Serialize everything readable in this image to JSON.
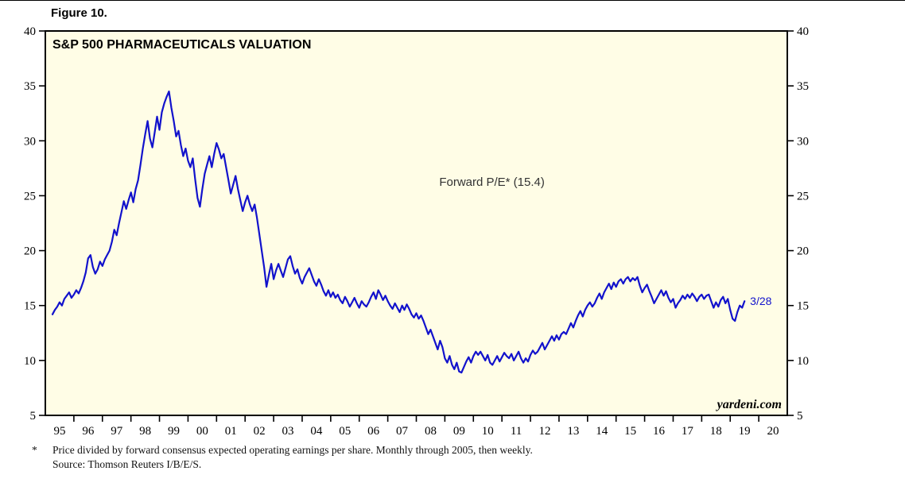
{
  "figure": {
    "label": "Figure 10."
  },
  "footnote": {
    "marker": "*",
    "line1": "Price divided by forward consensus expected operating earnings per share. Monthly through 2005, then weekly.",
    "line2": "Source: Thomson Reuters I/B/E/S."
  },
  "chart_data": {
    "type": "line",
    "title": "S&P 500 PHARMACEUTICALS VALUATION",
    "series_label": "Forward P/E*",
    "latest_value": 15.4,
    "annotation": "Forward P/E* (15.4)",
    "end_label": "3/28",
    "watermark": "yardeni.com",
    "line_color": "#1212cc",
    "plot_bg": "#fffde6",
    "grid": false,
    "legend_position": "none",
    "x_domain": [
      1994.75,
      2020.75
    ],
    "y_domain": [
      5,
      40
    ],
    "y_ticks": [
      5,
      10,
      15,
      20,
      25,
      30,
      35,
      40
    ],
    "x_tick_labels": [
      "95",
      "96",
      "97",
      "98",
      "99",
      "00",
      "01",
      "02",
      "03",
      "04",
      "05",
      "06",
      "07",
      "08",
      "09",
      "10",
      "11",
      "12",
      "13",
      "14",
      "15",
      "16",
      "17",
      "18",
      "19",
      "20"
    ],
    "x_start": 1995.0,
    "x_step_per_point": 0.0833333,
    "annotation_pos": {
      "x": 2010.4,
      "y": 25.9
    },
    "values": [
      14.2,
      14.6,
      14.9,
      15.3,
      15.0,
      15.6,
      15.9,
      16.2,
      15.7,
      16.0,
      16.4,
      16.1,
      16.6,
      17.2,
      18.0,
      19.3,
      19.6,
      18.5,
      17.9,
      18.3,
      19.0,
      18.6,
      19.2,
      19.6,
      20.0,
      20.8,
      21.9,
      21.4,
      22.5,
      23.5,
      24.5,
      23.8,
      24.6,
      25.3,
      24.4,
      25.6,
      26.4,
      27.8,
      29.3,
      30.6,
      31.8,
      30.2,
      29.4,
      30.8,
      32.2,
      31.0,
      32.6,
      33.4,
      34.0,
      34.5,
      33.0,
      31.8,
      30.4,
      30.9,
      29.6,
      28.6,
      29.3,
      28.2,
      27.6,
      28.4,
      26.5,
      24.8,
      24.0,
      25.6,
      27.0,
      27.8,
      28.6,
      27.6,
      28.8,
      29.8,
      29.2,
      28.4,
      28.8,
      27.6,
      26.4,
      25.2,
      26.0,
      26.8,
      25.6,
      24.6,
      23.6,
      24.4,
      25.0,
      24.2,
      23.6,
      24.2,
      23.0,
      21.5,
      20.0,
      18.5,
      16.7,
      17.8,
      18.8,
      17.4,
      18.2,
      18.8,
      18.2,
      17.6,
      18.4,
      19.2,
      19.5,
      18.6,
      17.9,
      18.3,
      17.5,
      17.0,
      17.6,
      18.0,
      18.4,
      17.8,
      17.2,
      16.8,
      17.4,
      16.9,
      16.3,
      15.9,
      16.4,
      15.8,
      16.2,
      15.7,
      16.0,
      15.5,
      15.2,
      15.8,
      15.4,
      14.9,
      15.3,
      15.7,
      15.2,
      14.8,
      15.4,
      15.1,
      14.9,
      15.3,
      15.8,
      16.2,
      15.6,
      16.4,
      16.0,
      15.5,
      15.9,
      15.4,
      15.0,
      14.7,
      15.2,
      14.8,
      14.4,
      15.0,
      14.6,
      15.1,
      14.7,
      14.2,
      13.9,
      14.3,
      13.8,
      14.1,
      13.6,
      13.0,
      12.4,
      12.8,
      12.2,
      11.6,
      11.0,
      11.8,
      11.2,
      10.2,
      9.8,
      10.4,
      9.6,
      9.2,
      9.8,
      9.0,
      8.9,
      9.4,
      9.9,
      10.3,
      9.8,
      10.4,
      10.8,
      10.5,
      10.8,
      10.4,
      10.0,
      10.5,
      9.8,
      9.6,
      10.0,
      10.4,
      9.9,
      10.3,
      10.7,
      10.4,
      10.2,
      10.6,
      10.0,
      10.4,
      10.8,
      10.2,
      9.8,
      10.2,
      9.9,
      10.5,
      10.9,
      10.6,
      10.8,
      11.2,
      11.6,
      11.0,
      11.4,
      11.8,
      12.2,
      11.8,
      12.3,
      11.9,
      12.4,
      12.6,
      12.4,
      12.9,
      13.4,
      13.0,
      13.6,
      14.1,
      14.5,
      14.0,
      14.6,
      15.0,
      15.3,
      14.9,
      15.2,
      15.7,
      16.1,
      15.6,
      16.2,
      16.6,
      17.0,
      16.5,
      17.1,
      16.7,
      17.2,
      17.4,
      17.0,
      17.4,
      17.6,
      17.2,
      17.5,
      17.3,
      17.6,
      16.8,
      16.2,
      16.6,
      16.9,
      16.3,
      15.8,
      15.2,
      15.6,
      16.0,
      16.4,
      15.9,
      16.3,
      15.7,
      15.3,
      15.6,
      14.8,
      15.2,
      15.5,
      15.9,
      15.6,
      16.0,
      15.7,
      16.1,
      15.8,
      15.4,
      15.8,
      16.0,
      15.6,
      15.9,
      16.0,
      15.4,
      14.8,
      15.3,
      14.9,
      15.5,
      15.8,
      15.2,
      15.6,
      14.6,
      13.8,
      13.6,
      14.4,
      15.0,
      14.8,
      15.4
    ]
  }
}
